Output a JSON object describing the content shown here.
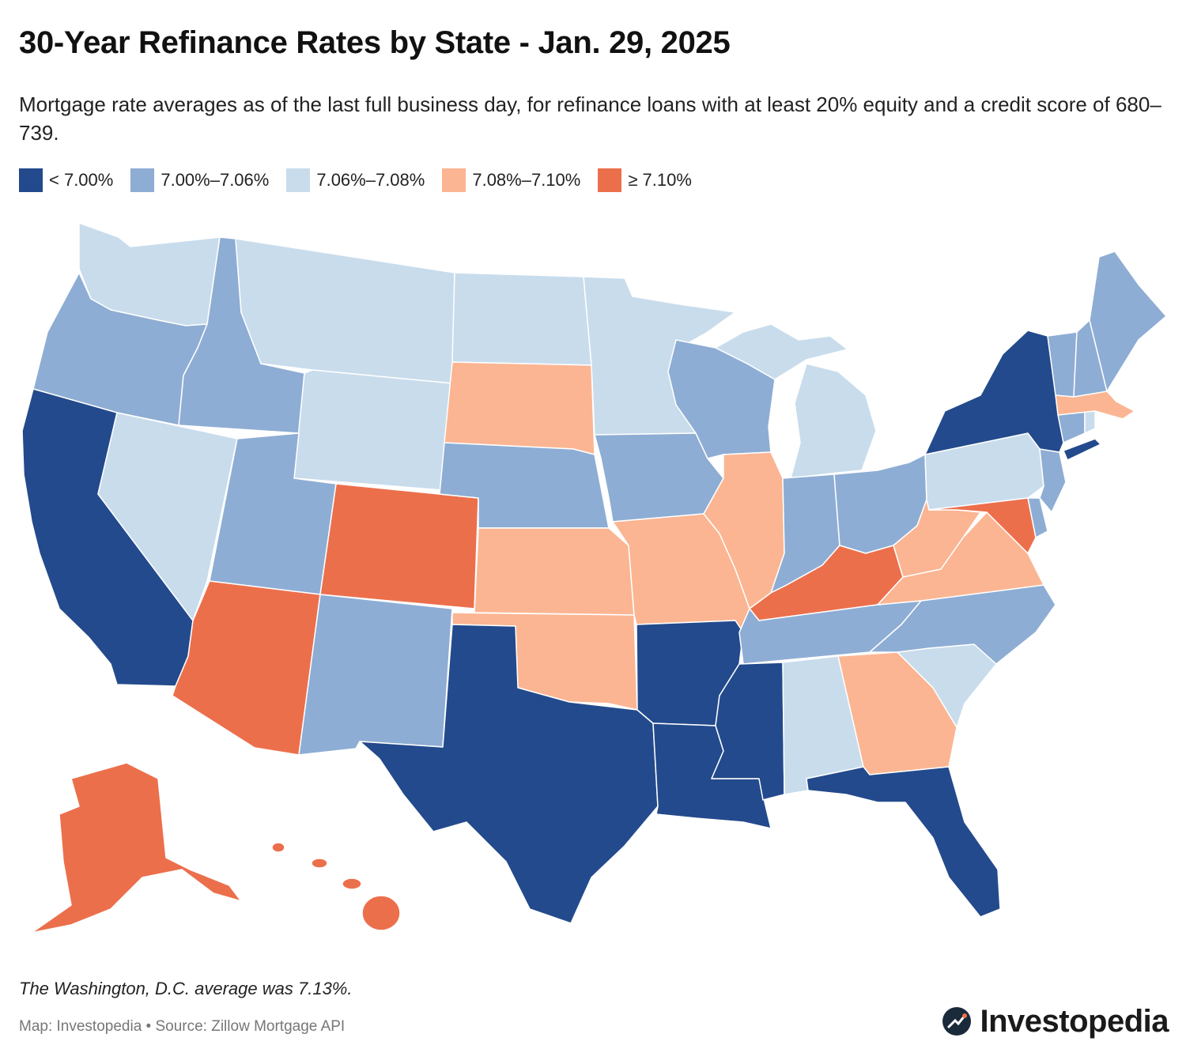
{
  "title": "30-Year Refinance Rates by State - Jan. 29, 2025",
  "subtitle": "Mortgage rate averages as of the last full business day, for refinance loans with at least 20% equity and a credit score of 680–739.",
  "legend": [
    {
      "label": "< 7.00%",
      "color": "#234a8c"
    },
    {
      "label": "7.00%–7.06%",
      "color": "#8eadd4"
    },
    {
      "label": "7.06%–7.08%",
      "color": "#c8dcec"
    },
    {
      "label": "7.08%–7.10%",
      "color": "#fbb592"
    },
    {
      "label": "≥ 7.10%",
      "color": "#ec6f4c"
    }
  ],
  "states": {
    "WA": 2,
    "OR": 1,
    "CA": 0,
    "NV": 2,
    "ID": 1,
    "MT": 2,
    "WY": 2,
    "UT": 1,
    "AZ": 4,
    "CO": 4,
    "NM": 1,
    "ND": 2,
    "SD": 3,
    "NE": 1,
    "KS": 3,
    "OK": 3,
    "TX": 0,
    "MN": 2,
    "IA": 1,
    "MO": 3,
    "AR": 0,
    "LA": 0,
    "WI": 1,
    "IL": 3,
    "MI": 2,
    "IN": 1,
    "OH": 1,
    "KY": 4,
    "TN": 1,
    "MS": 0,
    "AL": 2,
    "GA": 3,
    "FL": 0,
    "SC": 2,
    "NC": 1,
    "VA": 3,
    "WV": 3,
    "MD": 4,
    "DE": 1,
    "NJ": 1,
    "PA": 2,
    "NY": 0,
    "CT": 1,
    "RI": 2,
    "MA": 3,
    "VT": 1,
    "NH": 1,
    "ME": 1,
    "AK": 4,
    "HI": 4
  },
  "footnote": "The Washington, D.C. average was 7.13%.",
  "source": "Map: Investopedia • Source: Zillow Mortgage API",
  "brand": "Investopedia"
}
